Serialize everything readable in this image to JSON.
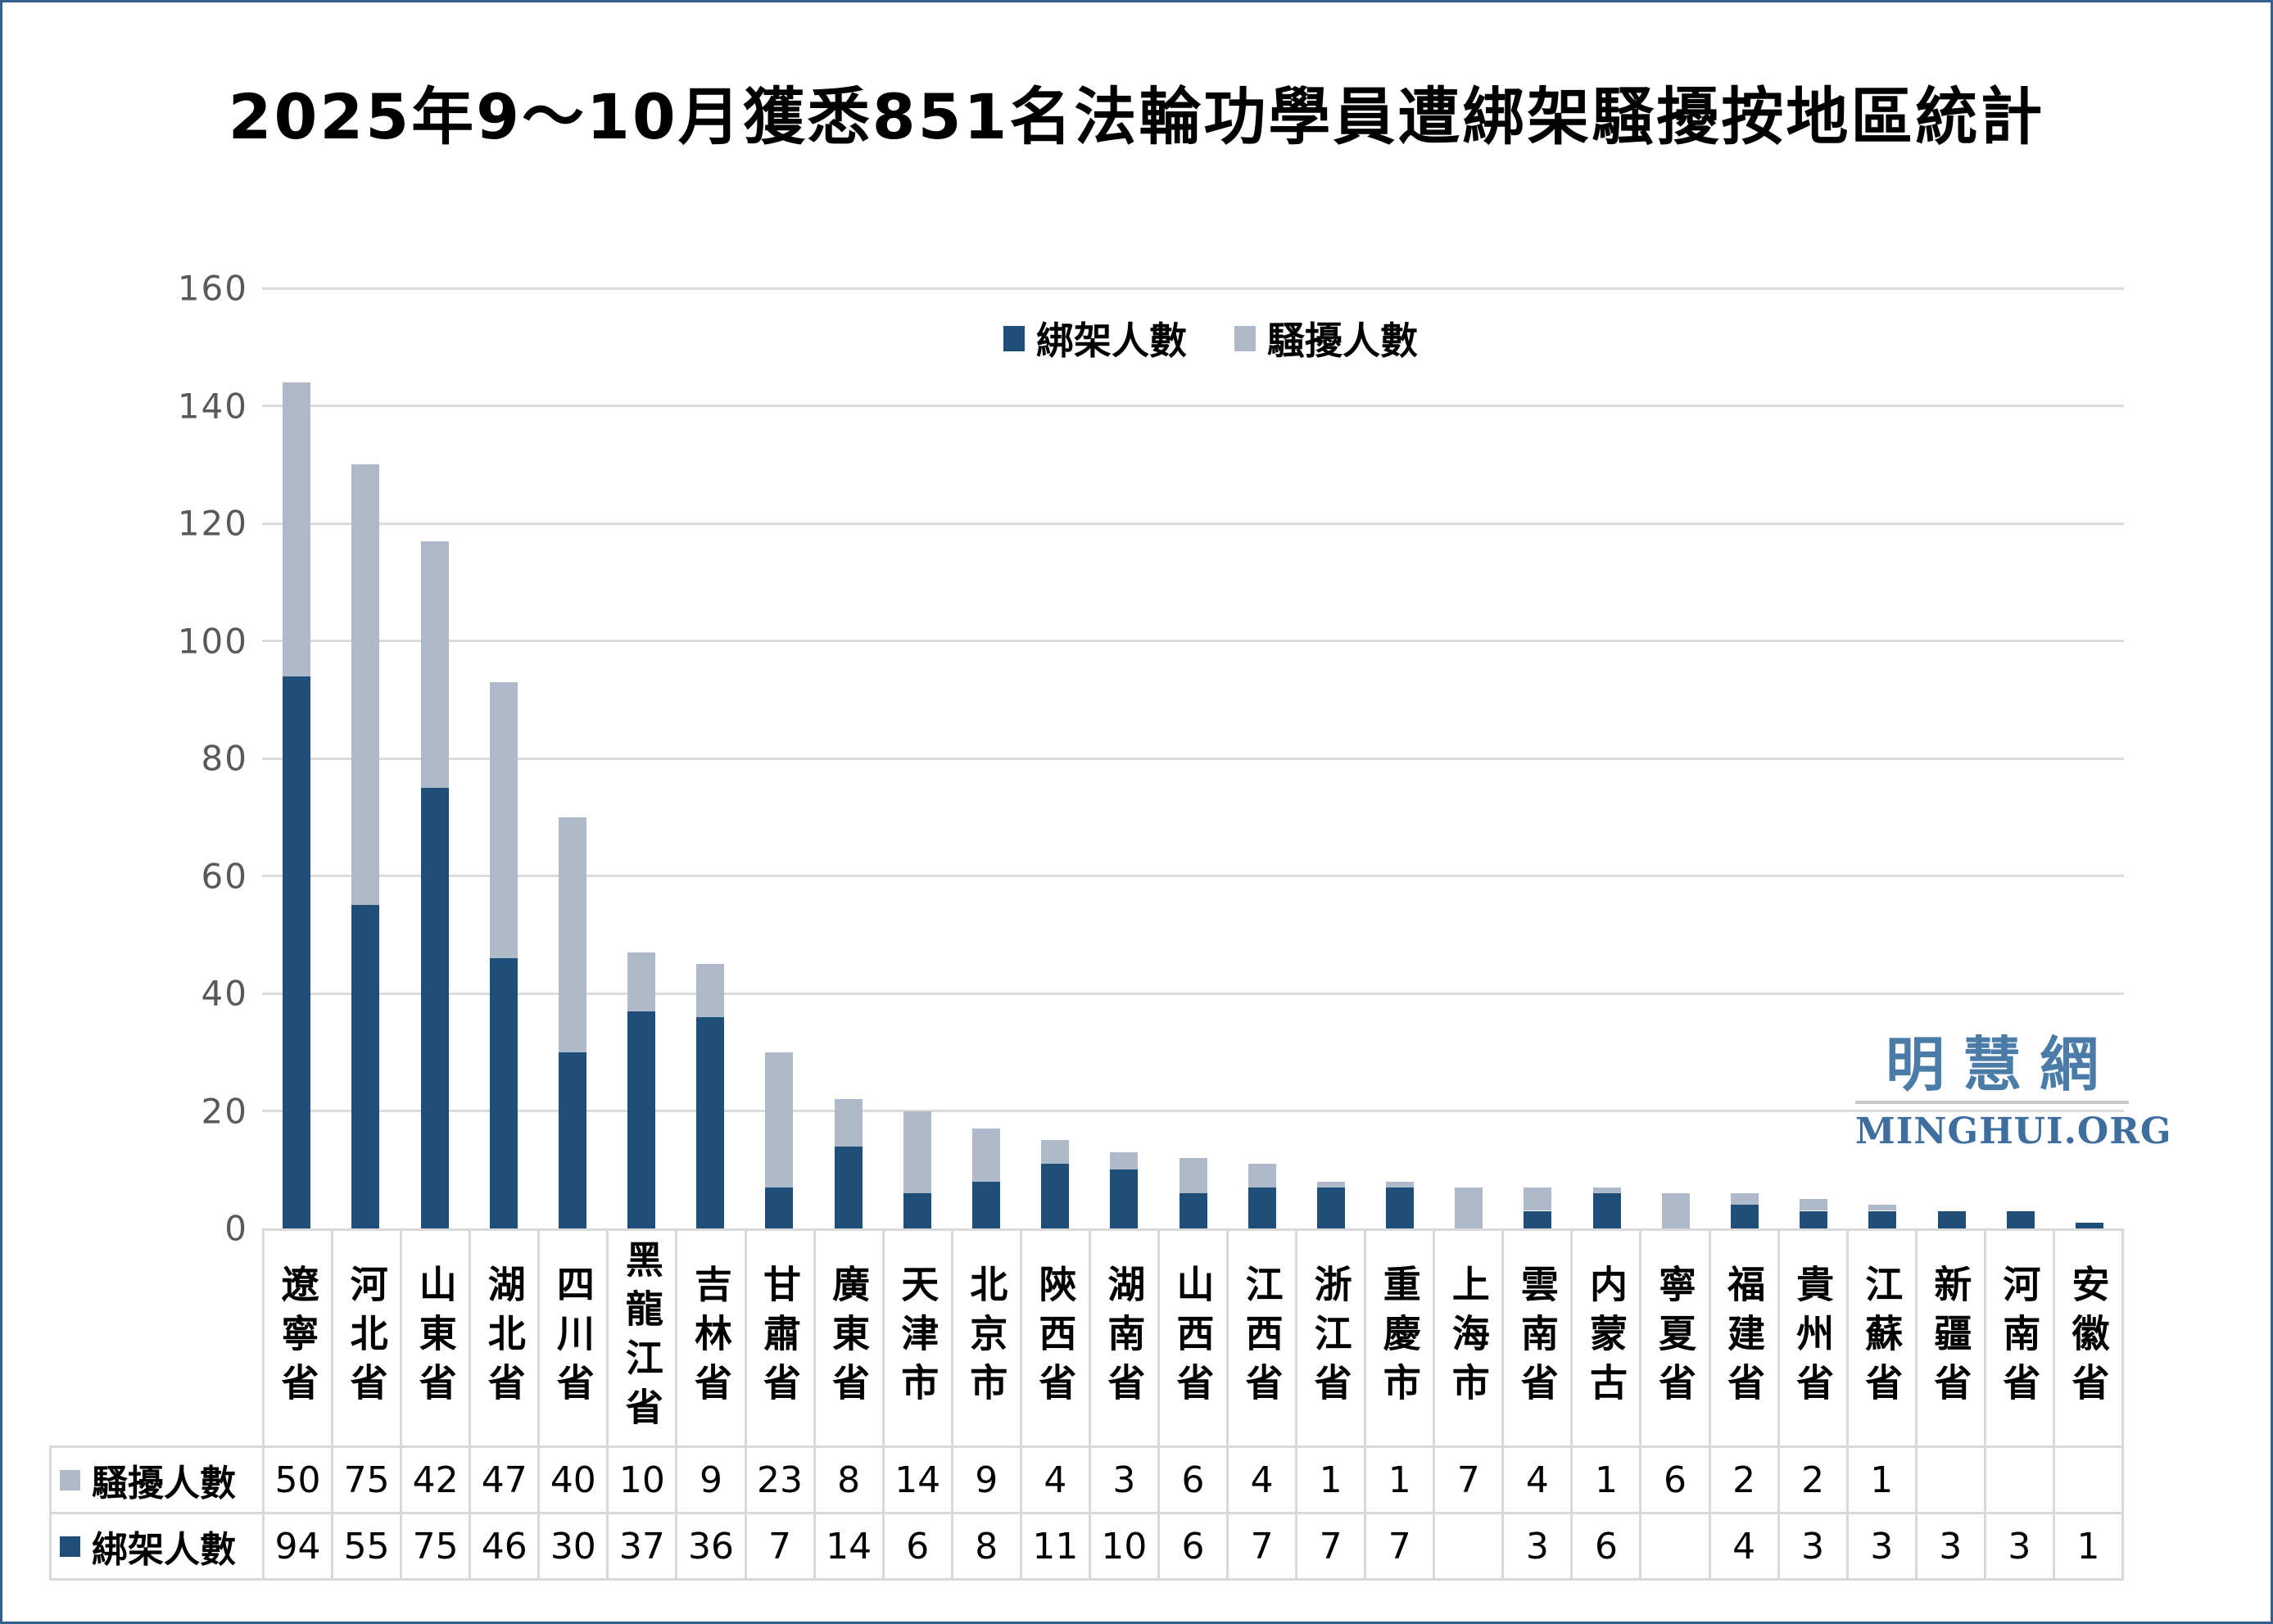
{
  "title": "2025年9～10月獲悉851名法輪功學員遭綁架騷擾按地區統計",
  "watermark": {
    "cn": "明慧網",
    "en": "MINGHUI.ORG"
  },
  "colors": {
    "kidnapped": "#1F4E79",
    "harassed": "#AEB9CA",
    "grid": "#DBDBDB",
    "axis_text": "#595959",
    "table_border": "#D9D9D9",
    "frame_border": "#35608D",
    "watermark_cn": "#4B7CA8",
    "watermark_en": "#3E6E9E"
  },
  "chart_data": {
    "type": "bar",
    "stacked": true,
    "title": "2025年9～10月獲悉851名法輪功學員遭綁架騷擾按地區統計",
    "categories": [
      "遼寧省",
      "河北省",
      "山東省",
      "湖北省",
      "四川省",
      "黑龍江省",
      "吉林省",
      "甘肅省",
      "廣東省",
      "天津市",
      "北京市",
      "陝西省",
      "湖南省",
      "山西省",
      "江西省",
      "浙江省",
      "重慶市",
      "上海市",
      "雲南省",
      "内蒙古",
      "寧夏省",
      "福建省",
      "貴州省",
      "江蘇省",
      "新疆省",
      "河南省",
      "安徽省"
    ],
    "series": [
      {
        "name": "綁架人數",
        "color": "#1F4E79",
        "values": [
          94,
          55,
          75,
          46,
          30,
          37,
          36,
          7,
          14,
          6,
          8,
          11,
          10,
          6,
          7,
          7,
          7,
          null,
          3,
          6,
          null,
          4,
          3,
          3,
          3,
          3,
          1
        ]
      },
      {
        "name": "騷擾人數",
        "color": "#AEB9CA",
        "values": [
          50,
          75,
          42,
          47,
          40,
          10,
          9,
          23,
          8,
          14,
          9,
          4,
          3,
          6,
          4,
          1,
          1,
          7,
          4,
          1,
          6,
          2,
          2,
          1,
          null,
          null,
          null
        ]
      }
    ],
    "ylim": [
      0,
      160
    ],
    "yticks": [
      0,
      20,
      40,
      60,
      80,
      100,
      120,
      140,
      160
    ],
    "grid": true,
    "legend_position": "top-center",
    "data_table_shown": true,
    "table_row_order": [
      "騷擾人數",
      "綁架人數"
    ]
  }
}
